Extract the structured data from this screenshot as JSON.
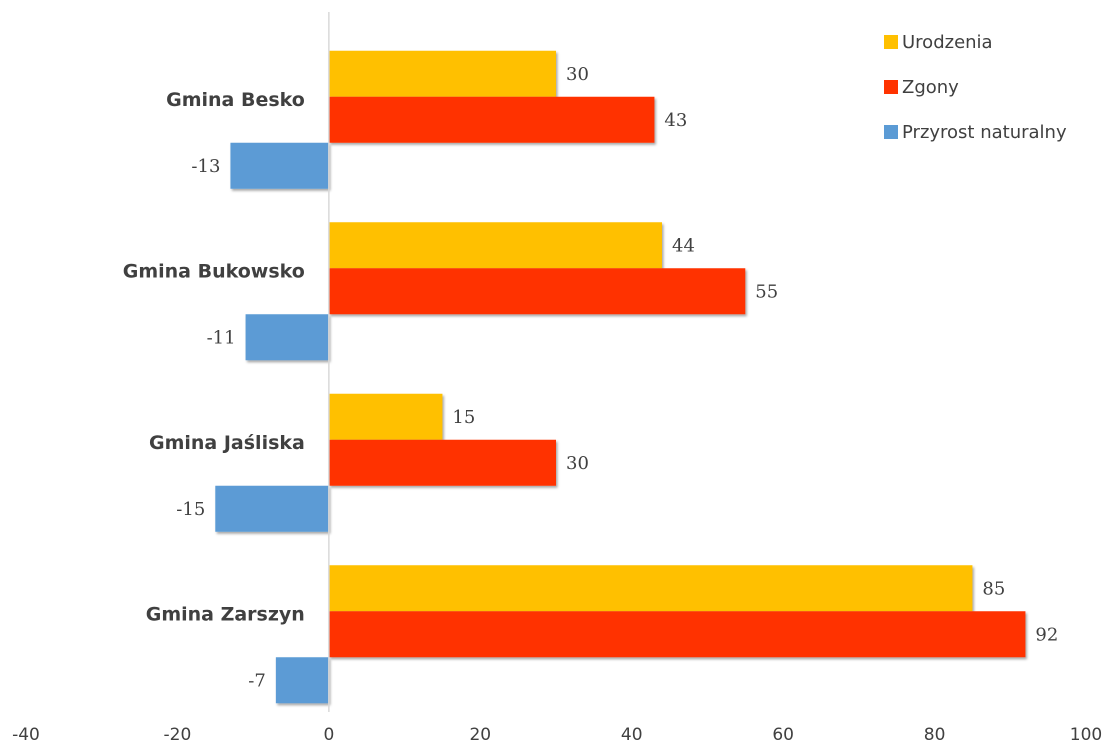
{
  "chart_data": {
    "type": "bar",
    "orientation": "horizontal",
    "categories": [
      "Gmina Besko",
      "Gmina Bukowsko",
      "Gmina Jaśliska",
      "Gmina Zarszyn"
    ],
    "series": [
      {
        "name": "Urodzenia",
        "color": "#FFC000",
        "values": [
          30,
          44,
          15,
          85
        ]
      },
      {
        "name": "Zgony",
        "color": "#FF3300",
        "values": [
          43,
          55,
          30,
          92
        ]
      },
      {
        "name": "Przyrost naturalny",
        "color": "#5B9BD5",
        "values": [
          -13,
          -11,
          -15,
          -7
        ]
      }
    ],
    "xlim": [
      -40,
      100
    ],
    "xticks": [
      -40,
      -20,
      0,
      20,
      40,
      60,
      80,
      100
    ],
    "grid": false,
    "legend_position": "top-right",
    "title": "",
    "xlabel": "",
    "ylabel": ""
  }
}
